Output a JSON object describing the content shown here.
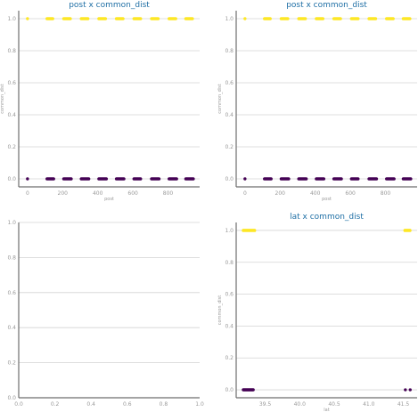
{
  "chart_data": [
    {
      "type": "scatter",
      "title": "post x common_dist",
      "xlabel": "post",
      "ylabel": "common_dist",
      "xlim": [
        -50,
        980
      ],
      "ylim": [
        -0.05,
        1.05
      ],
      "xticks": [
        0,
        200,
        400,
        600,
        800
      ],
      "xtick_labels": [
        "0",
        "200",
        "400",
        "600",
        "800"
      ],
      "yticks": [
        0.0,
        0.2,
        0.4,
        0.6,
        0.8,
        1.0
      ],
      "ytick_labels": [
        "0.0",
        "0.2",
        "0.4",
        "0.6",
        "0.8",
        "1.0"
      ],
      "grid": true,
      "clusters": [
        {
          "x": [
            0,
            0
          ],
          "y": 1,
          "color": "#fde725"
        },
        {
          "x": [
            110,
            145
          ],
          "y": 1,
          "color": "#fde725"
        },
        {
          "x": [
            205,
            245
          ],
          "y": 1,
          "color": "#fde725"
        },
        {
          "x": [
            305,
            345
          ],
          "y": 1,
          "color": "#fde725"
        },
        {
          "x": [
            405,
            445
          ],
          "y": 1,
          "color": "#fde725"
        },
        {
          "x": [
            505,
            545
          ],
          "y": 1,
          "color": "#fde725"
        },
        {
          "x": [
            605,
            645
          ],
          "y": 1,
          "color": "#fde725"
        },
        {
          "x": [
            705,
            745
          ],
          "y": 1,
          "color": "#fde725"
        },
        {
          "x": [
            805,
            845
          ],
          "y": 1,
          "color": "#fde725"
        },
        {
          "x": [
            900,
            940
          ],
          "y": 1,
          "color": "#fde725"
        },
        {
          "x": [
            0,
            0
          ],
          "y": 0,
          "color": "#440154"
        },
        {
          "x": [
            110,
            150
          ],
          "y": 0,
          "color": "#440154"
        },
        {
          "x": [
            205,
            250
          ],
          "y": 0,
          "color": "#440154"
        },
        {
          "x": [
            305,
            350
          ],
          "y": 0,
          "color": "#440154"
        },
        {
          "x": [
            405,
            450
          ],
          "y": 0,
          "color": "#440154"
        },
        {
          "x": [
            505,
            550
          ],
          "y": 0,
          "color": "#440154"
        },
        {
          "x": [
            605,
            645
          ],
          "y": 0,
          "color": "#440154"
        },
        {
          "x": [
            705,
            750
          ],
          "y": 0,
          "color": "#440154"
        },
        {
          "x": [
            805,
            850
          ],
          "y": 0,
          "color": "#440154"
        },
        {
          "x": [
            900,
            945
          ],
          "y": 0,
          "color": "#440154"
        }
      ]
    },
    {
      "type": "scatter",
      "title": "post x common_dist",
      "xlabel": "post",
      "ylabel": "common_dist",
      "xlim": [
        -50,
        980
      ],
      "ylim": [
        -0.05,
        1.05
      ],
      "xticks": [
        0,
        200,
        400,
        600,
        800
      ],
      "xtick_labels": [
        "0",
        "200",
        "400",
        "600",
        "800"
      ],
      "yticks": [
        0.0,
        0.2,
        0.4,
        0.6,
        0.8,
        1.0
      ],
      "ytick_labels": [
        "0.0",
        "0.2",
        "0.4",
        "0.6",
        "0.8",
        "1.0"
      ],
      "grid": true,
      "clusters": [
        {
          "x": [
            0,
            0
          ],
          "y": 1,
          "color": "#fde725"
        },
        {
          "x": [
            110,
            145
          ],
          "y": 1,
          "color": "#fde725"
        },
        {
          "x": [
            205,
            245
          ],
          "y": 1,
          "color": "#fde725"
        },
        {
          "x": [
            305,
            345
          ],
          "y": 1,
          "color": "#fde725"
        },
        {
          "x": [
            405,
            445
          ],
          "y": 1,
          "color": "#fde725"
        },
        {
          "x": [
            505,
            545
          ],
          "y": 1,
          "color": "#fde725"
        },
        {
          "x": [
            605,
            645
          ],
          "y": 1,
          "color": "#fde725"
        },
        {
          "x": [
            705,
            745
          ],
          "y": 1,
          "color": "#fde725"
        },
        {
          "x": [
            805,
            845
          ],
          "y": 1,
          "color": "#fde725"
        },
        {
          "x": [
            900,
            940
          ],
          "y": 1,
          "color": "#fde725"
        },
        {
          "x": [
            0,
            0
          ],
          "y": 0,
          "color": "#440154"
        },
        {
          "x": [
            110,
            150
          ],
          "y": 0,
          "color": "#440154"
        },
        {
          "x": [
            205,
            250
          ],
          "y": 0,
          "color": "#440154"
        },
        {
          "x": [
            305,
            350
          ],
          "y": 0,
          "color": "#440154"
        },
        {
          "x": [
            405,
            450
          ],
          "y": 0,
          "color": "#440154"
        },
        {
          "x": [
            505,
            550
          ],
          "y": 0,
          "color": "#440154"
        },
        {
          "x": [
            605,
            645
          ],
          "y": 0,
          "color": "#440154"
        },
        {
          "x": [
            705,
            750
          ],
          "y": 0,
          "color": "#440154"
        },
        {
          "x": [
            805,
            850
          ],
          "y": 0,
          "color": "#440154"
        },
        {
          "x": [
            900,
            945
          ],
          "y": 0,
          "color": "#440154"
        }
      ]
    },
    {
      "type": "scatter",
      "title": "",
      "xlabel": "",
      "ylabel": "",
      "xlim": [
        0,
        1
      ],
      "ylim": [
        0,
        1
      ],
      "xticks": [
        0.0,
        0.2,
        0.4,
        0.6,
        0.8,
        1.0
      ],
      "xtick_labels": [
        "0.0",
        "0.2",
        "0.4",
        "0.6",
        "0.8",
        "1.0"
      ],
      "yticks": [
        0.0,
        0.2,
        0.4,
        0.6,
        0.8,
        1.0
      ],
      "ytick_labels": [
        "0.0",
        "0.2",
        "0.4",
        "0.6",
        "0.8",
        "1.0"
      ],
      "grid": true,
      "clusters": []
    },
    {
      "type": "scatter",
      "title": "lat x common_dist",
      "xlabel": "lat",
      "ylabel": "common_dist",
      "xlim": [
        39.08,
        41.7
      ],
      "ylim": [
        -0.05,
        1.05
      ],
      "xticks": [
        39.5,
        40.0,
        40.5,
        41.0,
        41.5
      ],
      "xtick_labels": [
        "39.5",
        "40.0",
        "40.5",
        "41.0",
        "41.5"
      ],
      "yticks": [
        0.0,
        0.2,
        0.4,
        0.6,
        0.8,
        1.0
      ],
      "ytick_labels": [
        "0.0",
        "0.2",
        "0.4",
        "0.6",
        "0.8",
        "1.0"
      ],
      "grid": true,
      "clusters": [
        {
          "x": [
            39.18,
            39.35
          ],
          "y": 1,
          "color": "#fde725"
        },
        {
          "x": [
            41.52,
            41.6
          ],
          "y": 1,
          "color": "#fde725"
        },
        {
          "x": [
            39.18,
            39.33
          ],
          "y": 0,
          "color": "#440154"
        },
        {
          "x": [
            41.53,
            41.53
          ],
          "y": 0,
          "color": "#440154"
        },
        {
          "x": [
            41.6,
            41.6
          ],
          "y": 0,
          "color": "#440154"
        }
      ]
    }
  ]
}
